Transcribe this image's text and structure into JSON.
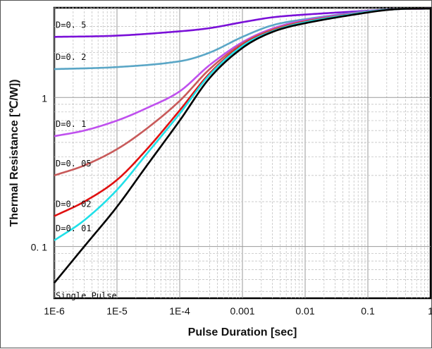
{
  "chart_data": {
    "type": "line",
    "title": "",
    "xlabel": "Pulse Duration [sec]",
    "ylabel": "Thermal Resistance [℃/W])",
    "x_scale": "log",
    "y_scale": "log",
    "xlim": [
      1e-06,
      1
    ],
    "ylim": [
      0.045,
      4
    ],
    "grid": true,
    "x_ticks": [
      {
        "value": 1e-06,
        "label": "1E-6"
      },
      {
        "value": 1e-05,
        "label": "1E-5"
      },
      {
        "value": 0.0001,
        "label": "1E-4"
      },
      {
        "value": 0.001,
        "label": "0.001"
      },
      {
        "value": 0.01,
        "label": "0.01"
      },
      {
        "value": 0.1,
        "label": "0.1"
      },
      {
        "value": 1,
        "label": "1"
      }
    ],
    "y_ticks": [
      {
        "value": 0.1,
        "label": "0. 1"
      },
      {
        "value": 1,
        "label": "1"
      }
    ],
    "series": [
      {
        "name": "D=0. 5",
        "color": "#7a10d8",
        "x": [
          1e-06,
          1e-05,
          0.0001,
          0.0003,
          0.001,
          0.003,
          0.01,
          0.1,
          0.3,
          1
        ],
        "y": [
          2.55,
          2.6,
          2.78,
          2.92,
          3.2,
          3.45,
          3.6,
          3.82,
          3.92,
          3.95
        ]
      },
      {
        "name": "D=0. 2",
        "color": "#5aa6c6",
        "x": [
          1e-06,
          1e-05,
          0.0001,
          0.0003,
          0.001,
          0.003,
          0.01,
          0.1,
          0.3,
          1
        ],
        "y": [
          1.55,
          1.6,
          1.75,
          2.0,
          2.55,
          3.05,
          3.35,
          3.8,
          3.92,
          3.95
        ]
      },
      {
        "name": "D=0. 1",
        "color": "#bf50ee",
        "x": [
          1e-06,
          3e-06,
          1e-05,
          3e-05,
          0.0001,
          0.0003,
          0.001,
          0.003,
          0.01,
          0.1,
          0.3,
          1
        ],
        "y": [
          0.55,
          0.6,
          0.7,
          0.85,
          1.1,
          1.65,
          2.35,
          2.9,
          3.3,
          3.78,
          3.92,
          3.95
        ]
      },
      {
        "name": "D=0. 05",
        "color": "#c85a5a",
        "x": [
          1e-06,
          3e-06,
          1e-05,
          3e-05,
          0.0001,
          0.0003,
          0.001,
          0.003,
          0.01,
          0.1,
          0.3,
          1
        ],
        "y": [
          0.3,
          0.35,
          0.45,
          0.62,
          0.95,
          1.55,
          2.3,
          2.85,
          3.25,
          3.76,
          3.92,
          3.95
        ]
      },
      {
        "name": "D=0. 02",
        "color": "#e01010",
        "x": [
          1e-06,
          3e-06,
          1e-05,
          3e-05,
          0.0001,
          0.0003,
          0.001,
          0.003,
          0.01,
          0.1,
          0.3,
          1
        ],
        "y": [
          0.16,
          0.2,
          0.28,
          0.45,
          0.82,
          1.45,
          2.25,
          2.8,
          3.22,
          3.75,
          3.92,
          3.95
        ]
      },
      {
        "name": "D=0. 01",
        "color": "#20e0e8",
        "x": [
          1e-06,
          3e-06,
          1e-05,
          3e-05,
          0.0001,
          0.0003,
          0.001,
          0.003,
          0.01,
          0.1,
          0.3,
          1
        ],
        "y": [
          0.11,
          0.15,
          0.24,
          0.42,
          0.78,
          1.42,
          2.22,
          2.78,
          3.2,
          3.75,
          3.92,
          3.95
        ]
      },
      {
        "name": "Single Pulse",
        "color": "#000000",
        "x": [
          1e-06,
          3e-06,
          1e-05,
          3e-05,
          0.0001,
          0.0003,
          0.001,
          0.003,
          0.01,
          0.1,
          0.3,
          1
        ],
        "y": [
          0.057,
          0.1,
          0.185,
          0.35,
          0.7,
          1.35,
          2.15,
          2.75,
          3.15,
          3.72,
          3.92,
          3.95
        ]
      }
    ]
  }
}
